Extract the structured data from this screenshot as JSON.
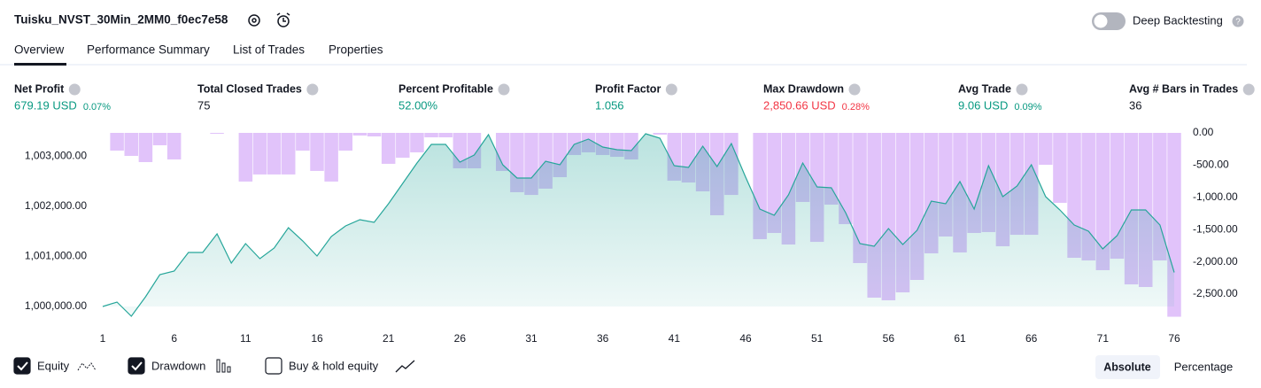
{
  "header": {
    "title": "Tuisku_NVST_30Min_2MM0_f0ec7e58",
    "toggle": "Deep Backtesting"
  },
  "tabs": [
    "Overview",
    "Performance Summary",
    "List of Trades",
    "Properties"
  ],
  "metrics": [
    {
      "label": "Net Profit",
      "value": "679.19 USD",
      "change": "0.07%"
    },
    {
      "label": "Total Closed Trades",
      "value": "75"
    },
    {
      "label": "Percent Profitable",
      "value": "52.00%"
    },
    {
      "label": "Profit Factor",
      "value": "1.056"
    },
    {
      "label": "Max Drawdown",
      "value": "2,850.66 USD",
      "change": "0.28%"
    },
    {
      "label": "Avg Trade",
      "value": "9.06 USD",
      "change": "0.09%"
    },
    {
      "label": "Avg # Bars in Trades",
      "value": "36"
    }
  ],
  "chart_data": {
    "type": "combo",
    "x": [
      1,
      2,
      3,
      4,
      5,
      6,
      7,
      8,
      9,
      10,
      11,
      12,
      13,
      14,
      15,
      16,
      17,
      18,
      19,
      20,
      21,
      22,
      23,
      24,
      25,
      26,
      27,
      28,
      29,
      30,
      31,
      32,
      33,
      34,
      35,
      36,
      37,
      38,
      39,
      40,
      41,
      42,
      43,
      44,
      45,
      46,
      47,
      48,
      49,
      50,
      51,
      52,
      53,
      54,
      55,
      56,
      57,
      58,
      59,
      60,
      61,
      62,
      63,
      64,
      65,
      66,
      67,
      68,
      69,
      70,
      71,
      72,
      73,
      74,
      75,
      76
    ],
    "series": [
      {
        "name": "Equity",
        "type": "line",
        "color": "#26a69a",
        "values": [
          1000000,
          1000088,
          999805,
          1000195,
          1000637,
          1000708,
          1001080,
          1001080,
          1001451,
          1000867,
          1001257,
          1000956,
          1001168,
          1001575,
          1001310,
          1001009,
          1001398,
          1001611,
          1001735,
          1001681,
          1002053,
          1002460,
          1002867,
          1003239,
          1003239,
          1002885,
          1003027,
          1003434,
          1002832,
          1002566,
          1002566,
          1002903,
          1002832,
          1003239,
          1003345,
          1003186,
          1003133,
          1003115,
          1003451,
          1003363,
          1002814,
          1002779,
          1003204,
          1002796,
          1003257,
          1002584,
          1001947,
          1001823,
          1002230,
          1002867,
          1002389,
          1002372,
          1001876,
          1001257,
          1001204,
          1001558,
          1001239,
          1001522,
          1002106,
          1002053,
          1002496,
          1001947,
          1002814,
          1002195,
          1002407,
          1002832,
          1002195,
          1001929,
          1001628,
          1001504,
          1001150,
          1001416,
          1001929,
          1001929,
          1001628,
          1000679
        ]
      },
      {
        "name": "Drawdown",
        "type": "bar",
        "axis": "y2",
        "color": "#ce9ef7",
        "values": [
          0,
          -275,
          -357,
          -453,
          -192,
          -412,
          0,
          0,
          -14,
          0,
          -755,
          -645,
          -645,
          -645,
          -275,
          -590,
          -755,
          -275,
          -41,
          -55,
          -480,
          -385,
          -302,
          -69,
          -69,
          -550,
          -550,
          0,
          -590,
          -920,
          -962,
          -865,
          -687,
          -343,
          -302,
          -343,
          -371,
          -412,
          0,
          -27,
          -741,
          -769,
          -907,
          -1277,
          -962,
          0,
          -1648,
          -1552,
          -1731,
          -1071,
          -1690,
          -1113,
          -1415,
          -2019,
          -2555,
          -2596,
          -2473,
          -2280,
          -1868,
          -1607,
          -1854,
          -1552,
          -1538,
          -1758,
          -1580,
          -1580,
          -495,
          -1085,
          -1937,
          -1978,
          -2129,
          -1951,
          -2349,
          -2390,
          -1978,
          -2851
        ]
      }
    ],
    "xlim": [
      1,
      76
    ],
    "xticks": [
      1,
      6,
      11,
      16,
      21,
      26,
      31,
      36,
      41,
      46,
      51,
      56,
      61,
      66,
      71,
      76
    ],
    "ylim": [
      999575,
      1003469
    ],
    "yticks": [
      {
        "value": 1000000,
        "label": "1,000,000.00"
      },
      {
        "value": 1001000,
        "label": "1,001,000.00"
      },
      {
        "value": 1002000,
        "label": "1,002,000.00"
      },
      {
        "value": 1003000,
        "label": "1,003,000.00"
      }
    ],
    "y2lim": [
      -3022,
      0
    ],
    "y2ticks": [
      {
        "value": 0,
        "label": "0.00"
      },
      {
        "value": -500,
        "label": "-500.00"
      },
      {
        "value": -1000,
        "label": "-1,000.00"
      },
      {
        "value": -1500,
        "label": "-1,500.00"
      },
      {
        "value": -2000,
        "label": "-2,000.00"
      },
      {
        "value": -2500,
        "label": "-2,500.00"
      }
    ],
    "grid": false
  },
  "legend_options": [
    "Buy & hold equity"
  ],
  "views": [
    "Absolute",
    "Percentage"
  ]
}
